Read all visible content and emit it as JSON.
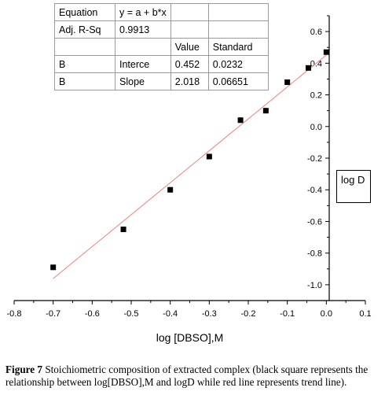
{
  "fit_table": {
    "rows": [
      [
        "Equation",
        "y = a + b*x",
        "",
        ""
      ],
      [
        "Adj. R-Sq",
        "0.9913",
        "",
        ""
      ],
      [
        "",
        "",
        "Value",
        "Standard"
      ],
      [
        "B",
        "Interce",
        "0.452",
        "0.0232"
      ],
      [
        "B",
        "Slope",
        "2.018",
        "0.06651"
      ]
    ]
  },
  "legend": {
    "label": "log D"
  },
  "caption": {
    "label": "Figure 7",
    "text": "Stoichiometric composition of extracted complex (black square represents the relationship between log[DBSO],M and logD while red line represents trend line)."
  },
  "colors": {
    "points": "#000000",
    "trend_line": "#f08080",
    "axis": "#000000"
  },
  "chart_data": {
    "type": "scatter",
    "xlabel": "log [DBSO],M",
    "ylabel": "",
    "xlim": [
      -0.8,
      0.1
    ],
    "ylim": [
      -1.1,
      0.7
    ],
    "x_ticks": [
      "-0.8",
      "-0.7",
      "-0.6",
      "-0.5",
      "-0.4",
      "-0.3",
      "-0.2",
      "-0.1",
      "0.0",
      "0.1"
    ],
    "y_ticks": [
      "-1.0",
      "-0.8",
      "-0.6",
      "-0.4",
      "-0.2",
      "0.0",
      "0.2",
      "0.4",
      "0.6"
    ],
    "series": [
      {
        "name": "log D",
        "x": [
          -0.7,
          -0.52,
          -0.4,
          -0.3,
          -0.22,
          -0.155,
          -0.1,
          -0.046,
          0.0
        ],
        "y": [
          -0.89,
          -0.65,
          -0.4,
          -0.19,
          0.04,
          0.1,
          0.28,
          0.37,
          0.47
        ]
      }
    ],
    "trend_line": {
      "intercept": 0.452,
      "slope": 2.018,
      "x_range": [
        -0.7,
        0.0
      ]
    },
    "grid": false
  }
}
